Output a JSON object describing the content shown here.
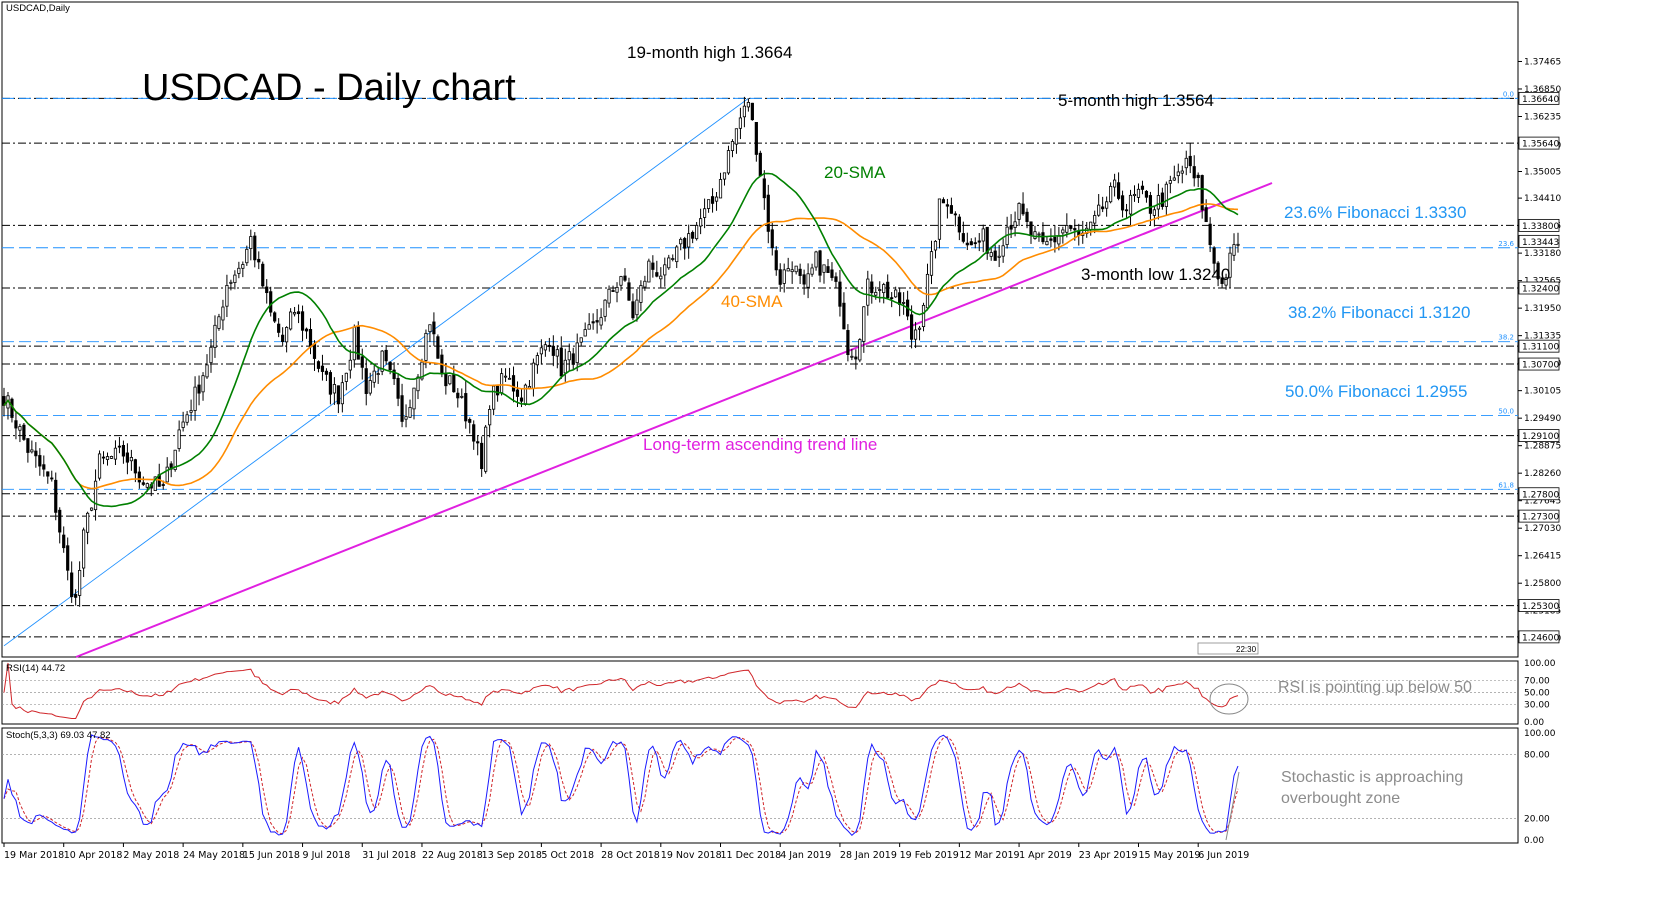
{
  "chart_title": "USDCAD,Daily",
  "big_title": "USDCAD - Daily chart",
  "colors": {
    "candle": "#000000",
    "sma20": "#008000",
    "sma40": "#ff8c00",
    "trendline": "#e020e0",
    "fib": "#1e90ff",
    "fib_text": "#2196f3",
    "hline": "#000000",
    "rsi": "#d0262a",
    "stoch_main": "#1a1aff",
    "stoch_signal": "#d0262a",
    "gray_text": "#8c8c8c"
  },
  "annotations": {
    "high19": "19-month high 1.3664",
    "high5": "5-month high 1.3564",
    "sma20": "20-SMA",
    "sma40": "40-SMA",
    "low3": "3-month low 1.3240",
    "trend": "Long-term ascending trend line",
    "fib236": "23.6% Fibonacci 1.3330",
    "fib382": "38.2% Fibonacci 1.3120",
    "fib500": "50.0% Fibonacci 1.2955",
    "rsi_note": "RSI is pointing up below 50",
    "stoch_note1": "Stochastic is approaching",
    "stoch_note2": "overbought zone"
  },
  "fib_small_labels": [
    "0.0",
    "23.6",
    "38.2",
    "50.0",
    "61.8"
  ],
  "rsi_label": "RSI(14) 44.72",
  "stoch_label": "Stoch(5,3,3) 69.03 47.82",
  "time_box": "22:30",
  "chart_data": [
    {
      "type": "candlestick",
      "title": "USDCAD,Daily",
      "ylim": [
        1.2415,
        1.3875
      ],
      "y_ticks": [
        "1.37465",
        "1.36850",
        "1.36235",
        "1.35600",
        "1.35005",
        "1.34410",
        "1.33795",
        "1.33180",
        "1.32565",
        "1.31950",
        "1.31335",
        "1.30720",
        "1.30105",
        "1.29490",
        "1.28875",
        "1.28260",
        "1.27645",
        "1.27030",
        "1.26415",
        "1.25800",
        "1.25185",
        "1.24570"
      ],
      "price_boxes": [
        {
          "label": "1.36640",
          "value": 1.3664
        },
        {
          "label": "1.35640",
          "value": 1.3564
        },
        {
          "label": "1.33800",
          "value": 1.338
        },
        {
          "label": "1.33443",
          "value": 1.33443
        },
        {
          "label": "1.32400",
          "value": 1.324
        },
        {
          "label": "1.31100",
          "value": 1.311
        },
        {
          "label": "1.30700",
          "value": 1.307
        },
        {
          "label": "1.29100",
          "value": 1.291
        },
        {
          "label": "1.27800",
          "value": 1.278
        },
        {
          "label": "1.27300",
          "value": 1.273
        },
        {
          "label": "1.25300",
          "value": 1.253
        },
        {
          "label": "1.24600",
          "value": 1.246
        }
      ],
      "horizontal_lines": [
        1.3664,
        1.3564,
        1.338,
        1.324,
        1.311,
        1.307,
        1.291,
        1.278,
        1.273,
        1.253,
        1.246
      ],
      "fib_levels": [
        {
          "pct": "0.0",
          "value": 1.3664
        },
        {
          "pct": "23.6",
          "value": 1.333
        },
        {
          "pct": "38.2",
          "value": 1.312
        },
        {
          "pct": "50.0",
          "value": 1.2955
        },
        {
          "pct": "61.8",
          "value": 1.279
        }
      ],
      "x_labels": [
        "19 Mar 2018",
        "10 Apr 2018",
        "2 May 2018",
        "24 May 2018",
        "15 Jun 2018",
        "9 Jul 2018",
        "31 Jul 2018",
        "22 Aug 2018",
        "13 Sep 2018",
        "5 Oct 2018",
        "28 Oct 2018",
        "19 Nov 2018",
        "11 Dec 2018",
        "4 Jan 2019",
        "28 Jan 2019",
        "19 Feb 2019",
        "12 Mar 2019",
        "1 Apr 2019",
        "23 Apr 2019",
        "15 May 2019",
        "6 Jun 2019"
      ],
      "close_anchors": [
        [
          0,
          1.3
        ],
        [
          6,
          1.288
        ],
        [
          12,
          1.28
        ],
        [
          16,
          1.26
        ],
        [
          18,
          1.254
        ],
        [
          20,
          1.268
        ],
        [
          24,
          1.285
        ],
        [
          30,
          1.287
        ],
        [
          35,
          1.281
        ],
        [
          40,
          1.279
        ],
        [
          44,
          1.292
        ],
        [
          48,
          1.3
        ],
        [
          52,
          1.31
        ],
        [
          56,
          1.325
        ],
        [
          60,
          1.33
        ],
        [
          62,
          1.335
        ],
        [
          64,
          1.328
        ],
        [
          67,
          1.318
        ],
        [
          70,
          1.312
        ],
        [
          73,
          1.319
        ],
        [
          76,
          1.314
        ],
        [
          80,
          1.304
        ],
        [
          84,
          1.3
        ],
        [
          88,
          1.313
        ],
        [
          91,
          1.302
        ],
        [
          95,
          1.308
        ],
        [
          98,
          1.302
        ],
        [
          100,
          1.293
        ],
        [
          104,
          1.306
        ],
        [
          107,
          1.317
        ],
        [
          110,
          1.304
        ],
        [
          113,
          1.302
        ],
        [
          116,
          1.296
        ],
        [
          118,
          1.292
        ],
        [
          120,
          1.283
        ],
        [
          122,
          1.299
        ],
        [
          126,
          1.304
        ],
        [
          130,
          1.3
        ],
        [
          134,
          1.308
        ],
        [
          137,
          1.313
        ],
        [
          140,
          1.306
        ],
        [
          144,
          1.31
        ],
        [
          148,
          1.315
        ],
        [
          152,
          1.322
        ],
        [
          155,
          1.327
        ],
        [
          158,
          1.318
        ],
        [
          162,
          1.329
        ],
        [
          166,
          1.327
        ],
        [
          170,
          1.333
        ],
        [
          174,
          1.338
        ],
        [
          178,
          1.343
        ],
        [
          182,
          1.354
        ],
        [
          185,
          1.362
        ],
        [
          187,
          1.365
        ],
        [
          189,
          1.356
        ],
        [
          191,
          1.344
        ],
        [
          193,
          1.332
        ],
        [
          195,
          1.326
        ],
        [
          198,
          1.33
        ],
        [
          201,
          1.323
        ],
        [
          204,
          1.33
        ],
        [
          207,
          1.327
        ],
        [
          210,
          1.322
        ],
        [
          212,
          1.311
        ],
        [
          214,
          1.31
        ],
        [
          217,
          1.324
        ],
        [
          220,
          1.325
        ],
        [
          223,
          1.322
        ],
        [
          226,
          1.32
        ],
        [
          228,
          1.313
        ],
        [
          230,
          1.317
        ],
        [
          233,
          1.33
        ],
        [
          235,
          1.342
        ],
        [
          237,
          1.344
        ],
        [
          240,
          1.338
        ],
        [
          243,
          1.333
        ],
        [
          246,
          1.335
        ],
        [
          249,
          1.331
        ],
        [
          252,
          1.338
        ],
        [
          255,
          1.341
        ],
        [
          258,
          1.336
        ],
        [
          261,
          1.333
        ],
        [
          264,
          1.335
        ],
        [
          267,
          1.338
        ],
        [
          270,
          1.335
        ],
        [
          273,
          1.337
        ],
        [
          276,
          1.342
        ],
        [
          279,
          1.346
        ],
        [
          282,
          1.342
        ],
        [
          285,
          1.345
        ],
        [
          288,
          1.342
        ],
        [
          291,
          1.344
        ],
        [
          294,
          1.348
        ],
        [
          297,
          1.351
        ],
        [
          300,
          1.347
        ],
        [
          302,
          1.338
        ],
        [
          304,
          1.33
        ],
        [
          306,
          1.325
        ],
        [
          308,
          1.33
        ],
        [
          310,
          1.3345
        ]
      ],
      "series": [
        {
          "name": "20-SMA"
        },
        {
          "name": "40-SMA"
        }
      ]
    },
    {
      "type": "line",
      "title": "RSI(14) 44.72",
      "ylim": [
        0,
        100
      ],
      "y_ticks": [
        "100.00",
        "70.00",
        "50.00",
        "30.00",
        "0.00"
      ],
      "last_value": 44.72
    },
    {
      "type": "line",
      "title": "Stoch(5,3,3) 69.03 47.82",
      "ylim": [
        0,
        100
      ],
      "y_ticks": [
        "100.00",
        "80.00",
        "20.00",
        "0.00"
      ],
      "last_main": 69.03,
      "last_signal": 47.82
    }
  ]
}
